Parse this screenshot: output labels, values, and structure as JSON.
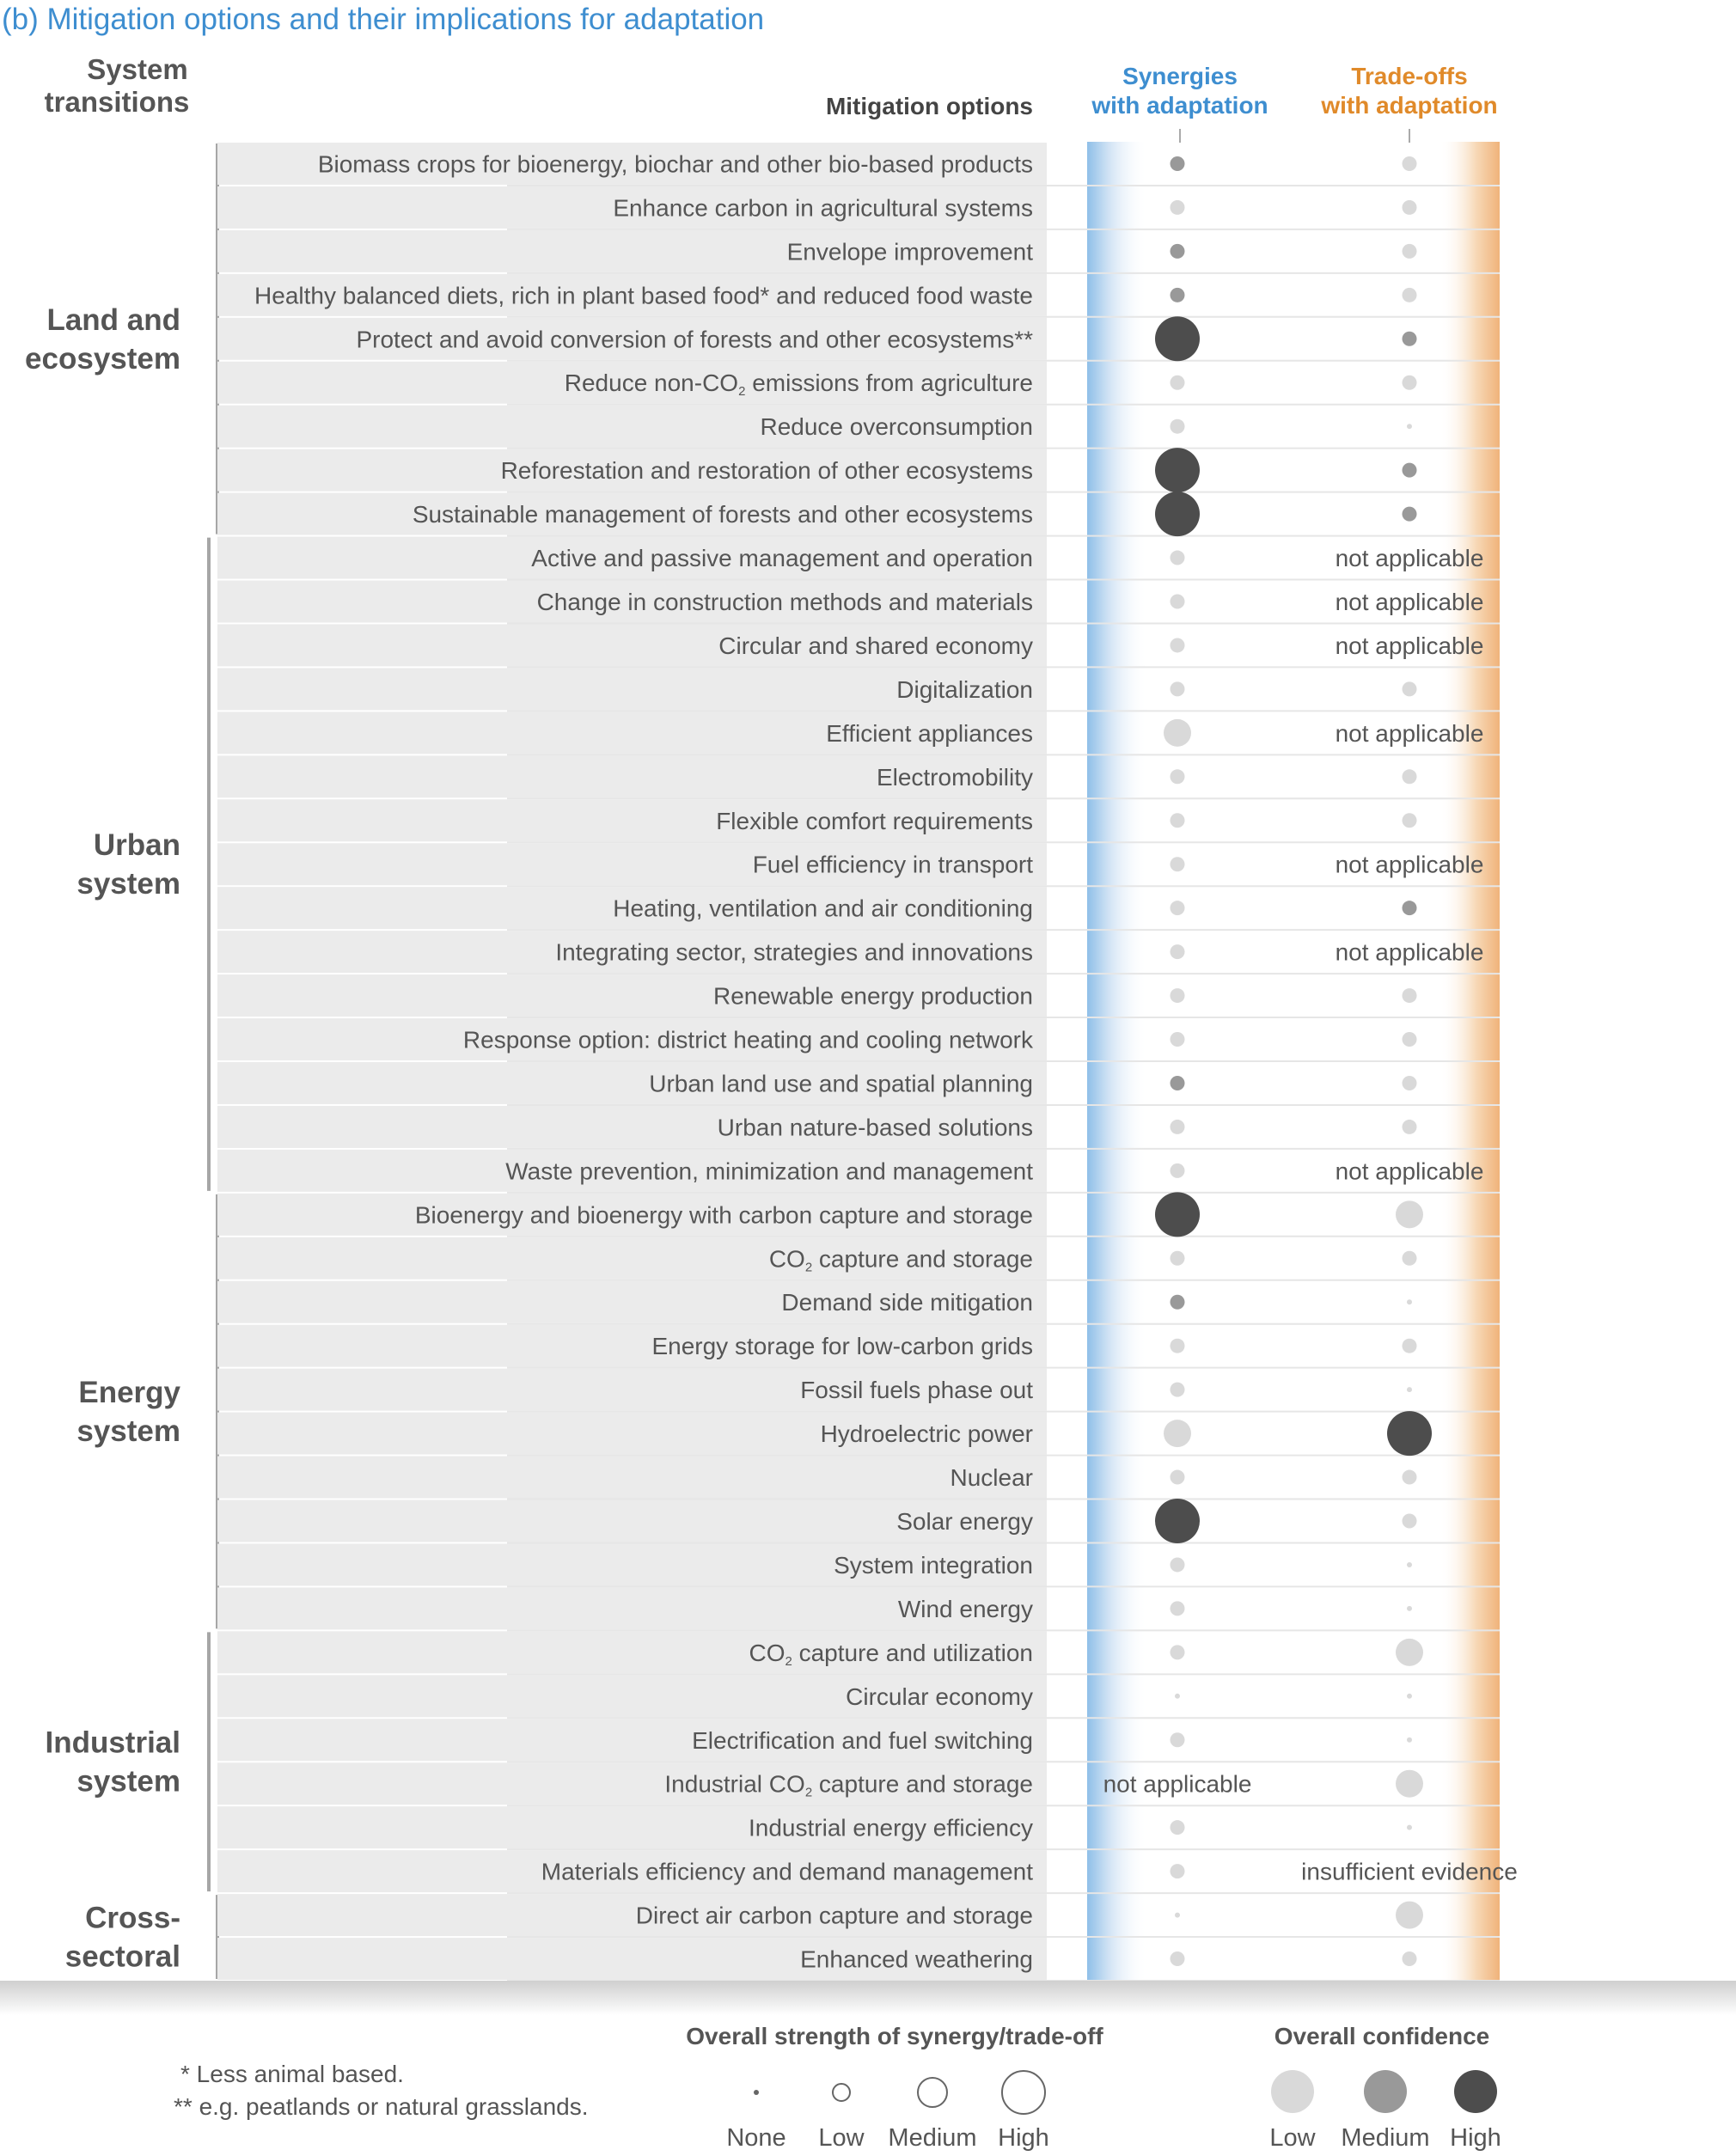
{
  "panel_title": "(b) Mitigation options and their implications for adaptation",
  "headers": {
    "system_transitions_1": "System",
    "system_transitions_2": "transitions",
    "mitigation_options": "Mitigation options",
    "synergies_1": "Synergies",
    "synergies_2": "with adaptation",
    "tradeoffs_1": "Trade-offs",
    "tradeoffs_2": "with adaptation"
  },
  "colors": {
    "synergy_blue": "#3e8ed0",
    "tradeoff_orange": "#e08a2a",
    "title_blue": "#3e8ed0",
    "confidence_low": "#d9d9d9",
    "confidence_medium": "#999999",
    "confidence_high": "#4d4d4d",
    "row_band": "#ebebeb",
    "text": "#555555"
  },
  "chart_data": {
    "type": "table",
    "encoding": {
      "size": "overall strength of synergy/trade-off (none, low, medium, high)",
      "fill": "overall confidence (low, medium, high)"
    },
    "groups": [
      {
        "name": [
          "Land and",
          "ecosystem"
        ],
        "rows": [
          {
            "label": "Biomass crops for bioenergy, biochar and other bio-based products",
            "syn": {
              "strength": "low",
              "confidence": "medium"
            },
            "trade": {
              "strength": "low",
              "confidence": "low"
            }
          },
          {
            "label": "Enhance carbon in agricultural systems",
            "syn": {
              "strength": "low",
              "confidence": "low"
            },
            "trade": {
              "strength": "low",
              "confidence": "low"
            }
          },
          {
            "label": "Envelope improvement",
            "syn": {
              "strength": "low",
              "confidence": "medium"
            },
            "trade": {
              "strength": "low",
              "confidence": "low"
            }
          },
          {
            "label": "Healthy balanced diets, rich in plant based food* and reduced food waste",
            "syn": {
              "strength": "low",
              "confidence": "medium"
            },
            "trade": {
              "strength": "low",
              "confidence": "low"
            }
          },
          {
            "label": "Protect and avoid conversion of forests and other ecosystems**",
            "syn": {
              "strength": "high",
              "confidence": "high"
            },
            "trade": {
              "strength": "low",
              "confidence": "medium"
            }
          },
          {
            "label": [
              "Reduce non-CO",
              "2",
              " emissions from agriculture"
            ],
            "syn": {
              "strength": "low",
              "confidence": "low"
            },
            "trade": {
              "strength": "low",
              "confidence": "low"
            }
          },
          {
            "label": "Reduce overconsumption",
            "syn": {
              "strength": "low",
              "confidence": "low"
            },
            "trade": {
              "strength": "none",
              "confidence": "low"
            }
          },
          {
            "label": "Reforestation and restoration of other ecosystems",
            "syn": {
              "strength": "high",
              "confidence": "high"
            },
            "trade": {
              "strength": "low",
              "confidence": "medium"
            }
          },
          {
            "label": "Sustainable management of forests and other ecosystems",
            "syn": {
              "strength": "high",
              "confidence": "high"
            },
            "trade": {
              "strength": "low",
              "confidence": "medium"
            }
          }
        ]
      },
      {
        "name": [
          "Urban",
          "system"
        ],
        "rows": [
          {
            "label": "Active and passive management and operation",
            "syn": {
              "strength": "low",
              "confidence": "low"
            },
            "trade": {
              "text": "not applicable"
            }
          },
          {
            "label": "Change in construction methods and materials",
            "syn": {
              "strength": "low",
              "confidence": "low"
            },
            "trade": {
              "text": "not applicable"
            }
          },
          {
            "label": "Circular and shared economy",
            "syn": {
              "strength": "low",
              "confidence": "low"
            },
            "trade": {
              "text": "not applicable"
            }
          },
          {
            "label": "Digitalization",
            "syn": {
              "strength": "low",
              "confidence": "low"
            },
            "trade": {
              "strength": "low",
              "confidence": "low"
            }
          },
          {
            "label": "Efficient appliances",
            "syn": {
              "strength": "medium",
              "confidence": "low"
            },
            "trade": {
              "text": "not applicable"
            }
          },
          {
            "label": "Electromobility",
            "syn": {
              "strength": "low",
              "confidence": "low"
            },
            "trade": {
              "strength": "low",
              "confidence": "low"
            }
          },
          {
            "label": "Flexible comfort requirements",
            "syn": {
              "strength": "low",
              "confidence": "low"
            },
            "trade": {
              "strength": "low",
              "confidence": "low"
            }
          },
          {
            "label": "Fuel efficiency in transport",
            "syn": {
              "strength": "low",
              "confidence": "low"
            },
            "trade": {
              "text": "not applicable"
            }
          },
          {
            "label": "Heating, ventilation and air conditioning",
            "syn": {
              "strength": "low",
              "confidence": "low"
            },
            "trade": {
              "strength": "low",
              "confidence": "medium"
            }
          },
          {
            "label": "Integrating sector, strategies and innovations",
            "syn": {
              "strength": "low",
              "confidence": "low"
            },
            "trade": {
              "text": "not applicable"
            }
          },
          {
            "label": "Renewable energy production",
            "syn": {
              "strength": "low",
              "confidence": "low"
            },
            "trade": {
              "strength": "low",
              "confidence": "low"
            }
          },
          {
            "label": "Response option: district heating and cooling network",
            "syn": {
              "strength": "low",
              "confidence": "low"
            },
            "trade": {
              "strength": "low",
              "confidence": "low"
            }
          },
          {
            "label": "Urban land use and spatial planning",
            "syn": {
              "strength": "low",
              "confidence": "medium"
            },
            "trade": {
              "strength": "low",
              "confidence": "low"
            }
          },
          {
            "label": "Urban nature-based solutions",
            "syn": {
              "strength": "low",
              "confidence": "low"
            },
            "trade": {
              "strength": "low",
              "confidence": "low"
            }
          },
          {
            "label": "Waste prevention, minimization and management",
            "syn": {
              "strength": "low",
              "confidence": "low"
            },
            "trade": {
              "text": "not applicable"
            }
          }
        ]
      },
      {
        "name": [
          "Energy",
          "system"
        ],
        "rows": [
          {
            "label": "Bioenergy and bioenergy with carbon capture and storage",
            "syn": {
              "strength": "high",
              "confidence": "high"
            },
            "trade": {
              "strength": "medium",
              "confidence": "low"
            }
          },
          {
            "label": [
              "CO",
              "2",
              " capture and storage"
            ],
            "syn": {
              "strength": "low",
              "confidence": "low"
            },
            "trade": {
              "strength": "low",
              "confidence": "low"
            }
          },
          {
            "label": "Demand side mitigation",
            "syn": {
              "strength": "low",
              "confidence": "medium"
            },
            "trade": {
              "strength": "none",
              "confidence": "low"
            }
          },
          {
            "label": "Energy storage for low-carbon grids",
            "syn": {
              "strength": "low",
              "confidence": "low"
            },
            "trade": {
              "strength": "low",
              "confidence": "low"
            }
          },
          {
            "label": "Fossil fuels phase out",
            "syn": {
              "strength": "low",
              "confidence": "low"
            },
            "trade": {
              "strength": "none",
              "confidence": "low"
            }
          },
          {
            "label": "Hydroelectric power",
            "syn": {
              "strength": "medium",
              "confidence": "low"
            },
            "trade": {
              "strength": "high",
              "confidence": "high"
            }
          },
          {
            "label": "Nuclear",
            "syn": {
              "strength": "low",
              "confidence": "low"
            },
            "trade": {
              "strength": "low",
              "confidence": "low"
            }
          },
          {
            "label": "Solar energy",
            "syn": {
              "strength": "high",
              "confidence": "high"
            },
            "trade": {
              "strength": "low",
              "confidence": "low"
            }
          },
          {
            "label": "System integration",
            "syn": {
              "strength": "low",
              "confidence": "low"
            },
            "trade": {
              "strength": "none",
              "confidence": "low"
            }
          },
          {
            "label": "Wind energy",
            "syn": {
              "strength": "low",
              "confidence": "low"
            },
            "trade": {
              "strength": "none",
              "confidence": "low"
            }
          }
        ]
      },
      {
        "name": [
          "Industrial",
          "system"
        ],
        "rows": [
          {
            "label": [
              "CO",
              "2",
              " capture and utilization"
            ],
            "syn": {
              "strength": "low",
              "confidence": "low"
            },
            "trade": {
              "strength": "medium",
              "confidence": "low"
            }
          },
          {
            "label": "Circular economy",
            "syn": {
              "strength": "none",
              "confidence": "low"
            },
            "trade": {
              "strength": "none",
              "confidence": "low"
            }
          },
          {
            "label": "Electrification and fuel switching",
            "syn": {
              "strength": "low",
              "confidence": "low"
            },
            "trade": {
              "strength": "none",
              "confidence": "low"
            }
          },
          {
            "label": [
              "Industrial CO",
              "2",
              " capture and storage"
            ],
            "syn": {
              "text": "not applicable"
            },
            "trade": {
              "strength": "medium",
              "confidence": "low"
            }
          },
          {
            "label": "Industrial energy efficiency",
            "syn": {
              "strength": "low",
              "confidence": "low"
            },
            "trade": {
              "strength": "none",
              "confidence": "low"
            }
          },
          {
            "label": "Materials efficiency and demand management",
            "syn": {
              "strength": "low",
              "confidence": "low"
            },
            "trade": {
              "text": "insufficient evidence"
            }
          }
        ]
      },
      {
        "name": [
          "Cross-",
          "sectoral"
        ],
        "rows": [
          {
            "label": "Direct air carbon capture and storage",
            "syn": {
              "strength": "none",
              "confidence": "low"
            },
            "trade": {
              "strength": "medium",
              "confidence": "low"
            }
          },
          {
            "label": "Enhanced weathering",
            "syn": {
              "strength": "low",
              "confidence": "low"
            },
            "trade": {
              "strength": "low",
              "confidence": "low"
            }
          }
        ]
      }
    ]
  },
  "legend": {
    "footnote_1": "* Less animal based.",
    "footnote_2": "** e.g. peatlands or natural grasslands.",
    "strength_title": "Overall strength of synergy/trade-off",
    "strength_items": [
      "None",
      "Low",
      "Medium",
      "High"
    ],
    "confidence_title": "Overall confidence",
    "confidence_items": [
      "Low",
      "Medium",
      "High"
    ]
  }
}
